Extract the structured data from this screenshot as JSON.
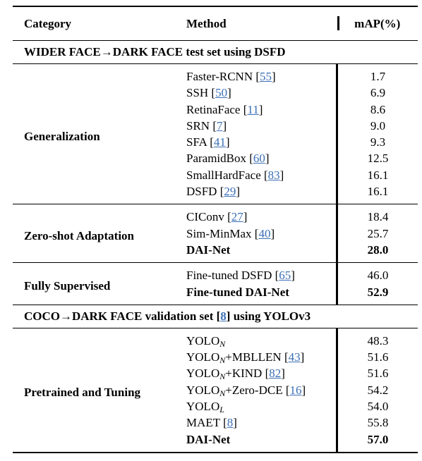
{
  "header": {
    "category": "Category",
    "method": "Method",
    "value": "mAP(%)"
  },
  "sections": [
    {
      "title": [
        {
          "t": "WIDER FACE→DARK FACE test set using DSFD"
        }
      ],
      "groups": [
        {
          "category": "Generalization",
          "rows": [
            {
              "method": [
                {
                  "t": "Faster-RCNN ["
                },
                {
                  "t": "55",
                  "link": true
                },
                {
                  "t": "]"
                }
              ],
              "value": "1.7"
            },
            {
              "method": [
                {
                  "t": "SSH ["
                },
                {
                  "t": "50",
                  "link": true
                },
                {
                  "t": "]"
                }
              ],
              "value": "6.9"
            },
            {
              "method": [
                {
                  "t": "RetinaFace ["
                },
                {
                  "t": "11",
                  "link": true
                },
                {
                  "t": "]"
                }
              ],
              "value": "8.6"
            },
            {
              "method": [
                {
                  "t": "SRN ["
                },
                {
                  "t": "7",
                  "link": true
                },
                {
                  "t": "]"
                }
              ],
              "value": "9.0"
            },
            {
              "method": [
                {
                  "t": "SFA ["
                },
                {
                  "t": "41",
                  "link": true
                },
                {
                  "t": "]"
                }
              ],
              "value": "9.3"
            },
            {
              "method": [
                {
                  "t": "ParamidBox ["
                },
                {
                  "t": "60",
                  "link": true
                },
                {
                  "t": "]"
                }
              ],
              "value": "12.5"
            },
            {
              "method": [
                {
                  "t": "SmallHardFace ["
                },
                {
                  "t": "83",
                  "link": true
                },
                {
                  "t": "]"
                }
              ],
              "value": "16.1"
            },
            {
              "method": [
                {
                  "t": "DSFD ["
                },
                {
                  "t": "29",
                  "link": true
                },
                {
                  "t": "]"
                }
              ],
              "value": "16.1"
            }
          ]
        },
        {
          "category": "Zero-shot Adaptation",
          "rows": [
            {
              "method": [
                {
                  "t": "CIConv ["
                },
                {
                  "t": "27",
                  "link": true
                },
                {
                  "t": "]"
                }
              ],
              "value": "18.4"
            },
            {
              "method": [
                {
                  "t": "Sim-MinMax ["
                },
                {
                  "t": "40",
                  "link": true
                },
                {
                  "t": "]"
                }
              ],
              "value": "25.7"
            },
            {
              "method": [
                {
                  "t": "DAI-Net"
                }
              ],
              "value": "28.0",
              "bold": true
            }
          ]
        },
        {
          "category": "Fully Supervised",
          "rows": [
            {
              "method": [
                {
                  "t": "Fine-tuned DSFD ["
                },
                {
                  "t": "65",
                  "link": true
                },
                {
                  "t": "]"
                }
              ],
              "value": "46.0"
            },
            {
              "method": [
                {
                  "t": "Fine-tuned DAI-Net"
                }
              ],
              "value": "52.9",
              "bold": true
            }
          ]
        }
      ]
    },
    {
      "title": [
        {
          "t": "COCO→DARK FACE validation set ["
        },
        {
          "t": "8",
          "link": true
        },
        {
          "t": "] using YOLOv3"
        }
      ],
      "groups": [
        {
          "category": "Pretrained and Tuning",
          "rows": [
            {
              "method": [
                {
                  "t": "YOLO"
                },
                {
                  "t": "N",
                  "sub": true
                }
              ],
              "value": "48.3"
            },
            {
              "method": [
                {
                  "t": "YOLO"
                },
                {
                  "t": "N",
                  "sub": true
                },
                {
                  "t": "+MBLLEN ["
                },
                {
                  "t": "43",
                  "link": true
                },
                {
                  "t": "]"
                }
              ],
              "value": "51.6"
            },
            {
              "method": [
                {
                  "t": "YOLO"
                },
                {
                  "t": "N",
                  "sub": true
                },
                {
                  "t": "+KIND ["
                },
                {
                  "t": "82",
                  "link": true
                },
                {
                  "t": "]"
                }
              ],
              "value": "51.6"
            },
            {
              "method": [
                {
                  "t": "YOLO"
                },
                {
                  "t": "N",
                  "sub": true
                },
                {
                  "t": "+Zero-DCE ["
                },
                {
                  "t": "16",
                  "link": true
                },
                {
                  "t": "]"
                }
              ],
              "value": "54.2"
            },
            {
              "method": [
                {
                  "t": "YOLO"
                },
                {
                  "t": "L",
                  "sub": true
                }
              ],
              "value": "54.0"
            },
            {
              "method": [
                {
                  "t": "MAET ["
                },
                {
                  "t": "8",
                  "link": true
                },
                {
                  "t": "]"
                }
              ],
              "value": "55.8"
            },
            {
              "method": [
                {
                  "t": "DAI-Net"
                }
              ],
              "value": "57.0",
              "bold": true
            }
          ]
        }
      ]
    }
  ]
}
